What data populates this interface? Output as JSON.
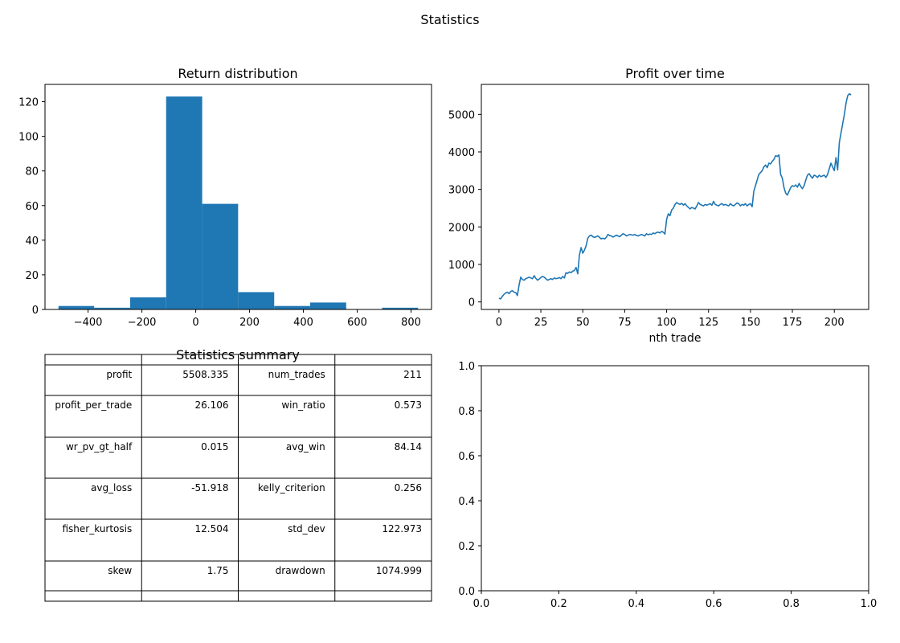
{
  "figure": {
    "title": "Statistics"
  },
  "chart_data": [
    {
      "type": "bar",
      "title": "Return distribution",
      "xlabel": "",
      "ylabel": "",
      "bin_edges": [
        -510,
        -377.5,
        -243.5,
        -110,
        24,
        157.5,
        291.5,
        425,
        559,
        692.5,
        826
      ],
      "counts": [
        2,
        1,
        7,
        123,
        61,
        10,
        2,
        4,
        0,
        1
      ],
      "xlim": [
        -560,
        876
      ],
      "ylim": [
        0,
        130
      ],
      "xticks": [
        -400,
        -200,
        0,
        200,
        400,
        600,
        800
      ],
      "xtick_labels": [
        "−400",
        "−200",
        "0",
        "200",
        "400",
        "600",
        "800"
      ],
      "yticks": [
        0,
        20,
        40,
        60,
        80,
        100,
        120
      ],
      "ytick_labels": [
        "0",
        "20",
        "40",
        "60",
        "80",
        "100",
        "120"
      ],
      "color": "#1f77b4",
      "grid": false
    },
    {
      "type": "line",
      "title": "Profit over time",
      "xlabel": "nth trade",
      "ylabel": "",
      "xlim": [
        -10.5,
        220.5
      ],
      "ylim": [
        -200,
        5800
      ],
      "xticks": [
        0,
        25,
        50,
        75,
        100,
        125,
        150,
        175,
        200
      ],
      "xtick_labels": [
        "0",
        "25",
        "50",
        "75",
        "100",
        "125",
        "150",
        "175",
        "200"
      ],
      "yticks": [
        0,
        1000,
        2000,
        3000,
        4000,
        5000
      ],
      "ytick_labels": [
        "0",
        "1000",
        "2000",
        "3000",
        "4000",
        "5000"
      ],
      "color": "#1f77b4",
      "grid": false,
      "points": [
        [
          0,
          100
        ],
        [
          1,
          80
        ],
        [
          2,
          150
        ],
        [
          3,
          200
        ],
        [
          4,
          240
        ],
        [
          5,
          260
        ],
        [
          6,
          220
        ],
        [
          7,
          280
        ],
        [
          8,
          300
        ],
        [
          9,
          260
        ],
        [
          10,
          250
        ],
        [
          11,
          170
        ],
        [
          12,
          450
        ],
        [
          13,
          660
        ],
        [
          14,
          600
        ],
        [
          15,
          580
        ],
        [
          16,
          620
        ],
        [
          17,
          640
        ],
        [
          18,
          660
        ],
        [
          19,
          640
        ],
        [
          20,
          620
        ],
        [
          21,
          700
        ],
        [
          22,
          630
        ],
        [
          23,
          580
        ],
        [
          24,
          610
        ],
        [
          25,
          650
        ],
        [
          26,
          680
        ],
        [
          27,
          660
        ],
        [
          28,
          620
        ],
        [
          29,
          580
        ],
        [
          30,
          600
        ],
        [
          31,
          620
        ],
        [
          32,
          600
        ],
        [
          33,
          640
        ],
        [
          34,
          620
        ],
        [
          35,
          630
        ],
        [
          36,
          650
        ],
        [
          37,
          620
        ],
        [
          38,
          680
        ],
        [
          39,
          640
        ],
        [
          40,
          780
        ],
        [
          41,
          760
        ],
        [
          42,
          800
        ],
        [
          43,
          780
        ],
        [
          44,
          820
        ],
        [
          45,
          840
        ],
        [
          46,
          920
        ],
        [
          47,
          750
        ],
        [
          48,
          1250
        ],
        [
          49,
          1450
        ],
        [
          50,
          1300
        ],
        [
          51,
          1380
        ],
        [
          52,
          1500
        ],
        [
          53,
          1700
        ],
        [
          54,
          1760
        ],
        [
          55,
          1780
        ],
        [
          56,
          1740
        ],
        [
          57,
          1720
        ],
        [
          58,
          1740
        ],
        [
          59,
          1760
        ],
        [
          60,
          1720
        ],
        [
          61,
          1680
        ],
        [
          62,
          1700
        ],
        [
          63,
          1680
        ],
        [
          64,
          1720
        ],
        [
          65,
          1800
        ],
        [
          66,
          1770
        ],
        [
          67,
          1760
        ],
        [
          68,
          1730
        ],
        [
          69,
          1750
        ],
        [
          70,
          1780
        ],
        [
          71,
          1760
        ],
        [
          72,
          1740
        ],
        [
          73,
          1780
        ],
        [
          74,
          1820
        ],
        [
          75,
          1800
        ],
        [
          76,
          1760
        ],
        [
          77,
          1780
        ],
        [
          78,
          1800
        ],
        [
          79,
          1790
        ],
        [
          80,
          1780
        ],
        [
          81,
          1800
        ],
        [
          82,
          1770
        ],
        [
          83,
          1760
        ],
        [
          84,
          1780
        ],
        [
          85,
          1800
        ],
        [
          86,
          1780
        ],
        [
          87,
          1760
        ],
        [
          88,
          1820
        ],
        [
          89,
          1790
        ],
        [
          90,
          1810
        ],
        [
          91,
          1800
        ],
        [
          92,
          1840
        ],
        [
          93,
          1820
        ],
        [
          94,
          1850
        ],
        [
          95,
          1860
        ],
        [
          96,
          1840
        ],
        [
          97,
          1880
        ],
        [
          98,
          1860
        ],
        [
          99,
          1810
        ],
        [
          100,
          2200
        ],
        [
          101,
          2350
        ],
        [
          102,
          2300
        ],
        [
          103,
          2450
        ],
        [
          104,
          2500
        ],
        [
          105,
          2600
        ],
        [
          106,
          2650
        ],
        [
          107,
          2620
        ],
        [
          108,
          2600
        ],
        [
          109,
          2630
        ],
        [
          110,
          2580
        ],
        [
          111,
          2620
        ],
        [
          112,
          2560
        ],
        [
          113,
          2520
        ],
        [
          114,
          2480
        ],
        [
          115,
          2520
        ],
        [
          116,
          2500
        ],
        [
          117,
          2480
        ],
        [
          118,
          2560
        ],
        [
          119,
          2650
        ],
        [
          120,
          2600
        ],
        [
          121,
          2580
        ],
        [
          122,
          2560
        ],
        [
          123,
          2600
        ],
        [
          124,
          2580
        ],
        [
          125,
          2600
        ],
        [
          126,
          2620
        ],
        [
          127,
          2580
        ],
        [
          128,
          2680
        ],
        [
          129,
          2600
        ],
        [
          130,
          2580
        ],
        [
          131,
          2560
        ],
        [
          132,
          2600
        ],
        [
          133,
          2620
        ],
        [
          134,
          2580
        ],
        [
          135,
          2600
        ],
        [
          136,
          2580
        ],
        [
          137,
          2560
        ],
        [
          138,
          2620
        ],
        [
          139,
          2580
        ],
        [
          140,
          2560
        ],
        [
          141,
          2600
        ],
        [
          142,
          2640
        ],
        [
          143,
          2620
        ],
        [
          144,
          2560
        ],
        [
          145,
          2600
        ],
        [
          146,
          2580
        ],
        [
          147,
          2620
        ],
        [
          148,
          2560
        ],
        [
          149,
          2600
        ],
        [
          150,
          2620
        ],
        [
          151,
          2540
        ],
        [
          152,
          2950
        ],
        [
          153,
          3100
        ],
        [
          154,
          3250
        ],
        [
          155,
          3400
        ],
        [
          156,
          3450
        ],
        [
          157,
          3500
        ],
        [
          158,
          3600
        ],
        [
          159,
          3650
        ],
        [
          160,
          3580
        ],
        [
          161,
          3700
        ],
        [
          162,
          3680
        ],
        [
          163,
          3750
        ],
        [
          164,
          3800
        ],
        [
          165,
          3900
        ],
        [
          166,
          3880
        ],
        [
          167,
          3920
        ],
        [
          168,
          3400
        ],
        [
          169,
          3300
        ],
        [
          170,
          3050
        ],
        [
          171,
          2900
        ],
        [
          172,
          2850
        ],
        [
          173,
          2950
        ],
        [
          174,
          3050
        ],
        [
          175,
          3100
        ],
        [
          176,
          3080
        ],
        [
          177,
          3120
        ],
        [
          178,
          3060
        ],
        [
          179,
          3160
        ],
        [
          180,
          3080
        ],
        [
          181,
          3020
        ],
        [
          182,
          3100
        ],
        [
          183,
          3250
        ],
        [
          184,
          3380
        ],
        [
          185,
          3420
        ],
        [
          186,
          3350
        ],
        [
          187,
          3300
        ],
        [
          188,
          3380
        ],
        [
          189,
          3360
        ],
        [
          190,
          3320
        ],
        [
          191,
          3380
        ],
        [
          192,
          3340
        ],
        [
          193,
          3360
        ],
        [
          194,
          3380
        ],
        [
          195,
          3320
        ],
        [
          196,
          3400
        ],
        [
          197,
          3550
        ],
        [
          198,
          3700
        ],
        [
          199,
          3600
        ],
        [
          200,
          3500
        ],
        [
          201,
          3850
        ],
        [
          202,
          3520
        ],
        [
          203,
          4250
        ],
        [
          204,
          4500
        ],
        [
          205,
          4750
        ],
        [
          206,
          5000
        ],
        [
          207,
          5300
        ],
        [
          208,
          5500
        ],
        [
          209,
          5550
        ],
        [
          210,
          5520
        ]
      ]
    },
    {
      "type": "table",
      "title": "Statistics summary",
      "rows": [
        [
          "profit",
          "5508.335",
          "num_trades",
          "211"
        ],
        [
          "profit_per_trade",
          "26.106",
          "win_ratio",
          "0.573"
        ],
        [
          "wr_pv_gt_half",
          "0.015",
          "avg_win",
          "84.14"
        ],
        [
          "avg_loss",
          "-51.918",
          "kelly_criterion",
          "0.256"
        ],
        [
          "fisher_kurtosis",
          "12.504",
          "std_dev",
          "122.973"
        ],
        [
          "skew",
          "1.75",
          "drawdown",
          "1074.999"
        ]
      ]
    },
    {
      "type": "scatter",
      "title": "",
      "x": [],
      "y": [],
      "xlim": [
        0,
        1
      ],
      "ylim": [
        0,
        1
      ],
      "xticks": [
        0,
        0.2,
        0.4,
        0.6,
        0.8,
        1.0
      ],
      "xtick_labels": [
        "0.0",
        "0.2",
        "0.4",
        "0.6",
        "0.8",
        "1.0"
      ],
      "yticks": [
        0,
        0.2,
        0.4,
        0.6,
        0.8,
        1.0
      ],
      "ytick_labels": [
        "0.0",
        "0.2",
        "0.4",
        "0.6",
        "0.8",
        "1.0"
      ],
      "grid": false
    }
  ]
}
